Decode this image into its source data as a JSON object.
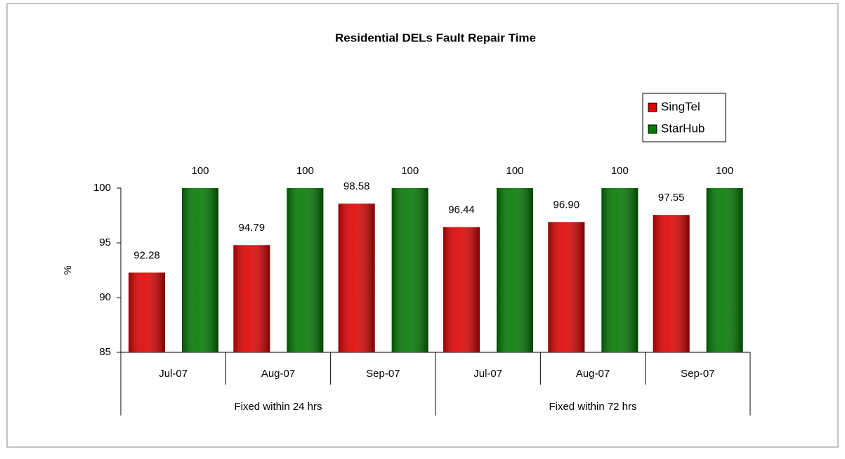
{
  "chart_data": {
    "type": "bar",
    "title": "Residential DELs Fault Repair Time",
    "y_label": "%",
    "categories": [
      "Jul-07",
      "Aug-07",
      "Sep-07",
      "Jul-07",
      "Aug-07",
      "Sep-07"
    ],
    "groups": [
      "Fixed within 24 hrs",
      "Fixed within 72 hrs"
    ],
    "series": [
      {
        "name": "SingTel",
        "color": "#e00000",
        "values": [
          92.28,
          94.79,
          98.58,
          96.44,
          96.9,
          97.55
        ],
        "value_labels": [
          "92.28",
          "94.79",
          "98.58",
          "96.44",
          "96.90",
          "97.55"
        ]
      },
      {
        "name": "StarHub",
        "color": "#007a00",
        "values": [
          100,
          100,
          100,
          100,
          100,
          100
        ]
      }
    ],
    "ylim": [
      85,
      100
    ],
    "yticks": [
      85,
      90,
      95,
      100
    ],
    "legend": "top-right"
  }
}
